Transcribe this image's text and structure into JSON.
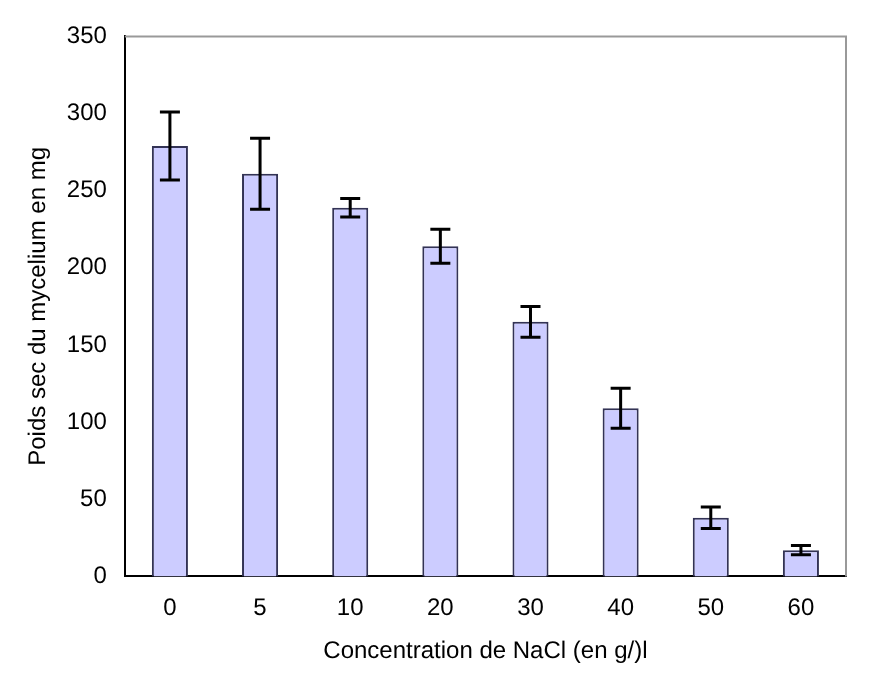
{
  "chart_data": {
    "type": "bar",
    "xlabel": "Concentration de NaCl (en g/)l",
    "ylabel": "Poids sec du mycelium en mg",
    "categories": [
      "0",
      "5",
      "10",
      "20",
      "30",
      "40",
      "50",
      "60"
    ],
    "values": [
      279,
      261,
      239,
      214,
      165,
      109,
      38,
      17
    ],
    "errors": [
      22,
      23,
      6,
      11,
      10,
      13,
      7,
      3
    ],
    "color": "#ccccff",
    "ylim": [
      0,
      350
    ],
    "yticks": [
      0,
      50,
      100,
      150,
      200,
      250,
      300,
      350
    ],
    "grid": false,
    "legend": false
  }
}
